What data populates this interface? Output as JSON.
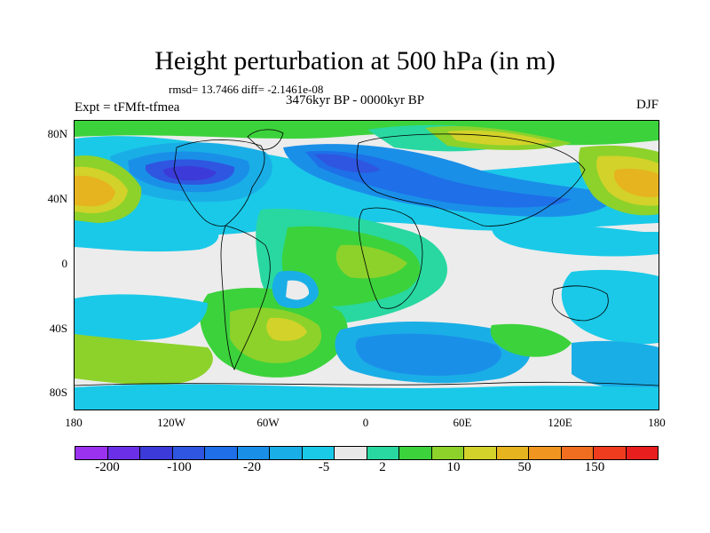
{
  "title": "Height perturbation at 500 hPa (in m)",
  "stats": "rmsd= 13.7466 diff= -2.1461e-08",
  "experiment": "Expt = tFMft-tfmea",
  "period": "3476kyr BP - 0000kyr BP",
  "season": "DJF",
  "lat_ticks": [
    "80N",
    "40N",
    "0",
    "40S",
    "80S"
  ],
  "lon_ticks": [
    "180",
    "120W",
    "60W",
    "0",
    "60E",
    "120E",
    "180"
  ],
  "colorbar": {
    "colors": [
      "#9a32f0",
      "#6a2fe6",
      "#3c3ad8",
      "#2f56e0",
      "#1e6fe8",
      "#1a8fe8",
      "#1aaee6",
      "#1ac9e8",
      "#e8e8e8",
      "#28d8a0",
      "#3cd23c",
      "#8cd22a",
      "#d2d22a",
      "#e6b41e",
      "#f09620",
      "#f06e20",
      "#f03c1e",
      "#e81e1e"
    ],
    "labels": [
      "-200",
      "-100",
      "-20",
      "-5",
      "2",
      "10",
      "50",
      "150"
    ]
  }
}
